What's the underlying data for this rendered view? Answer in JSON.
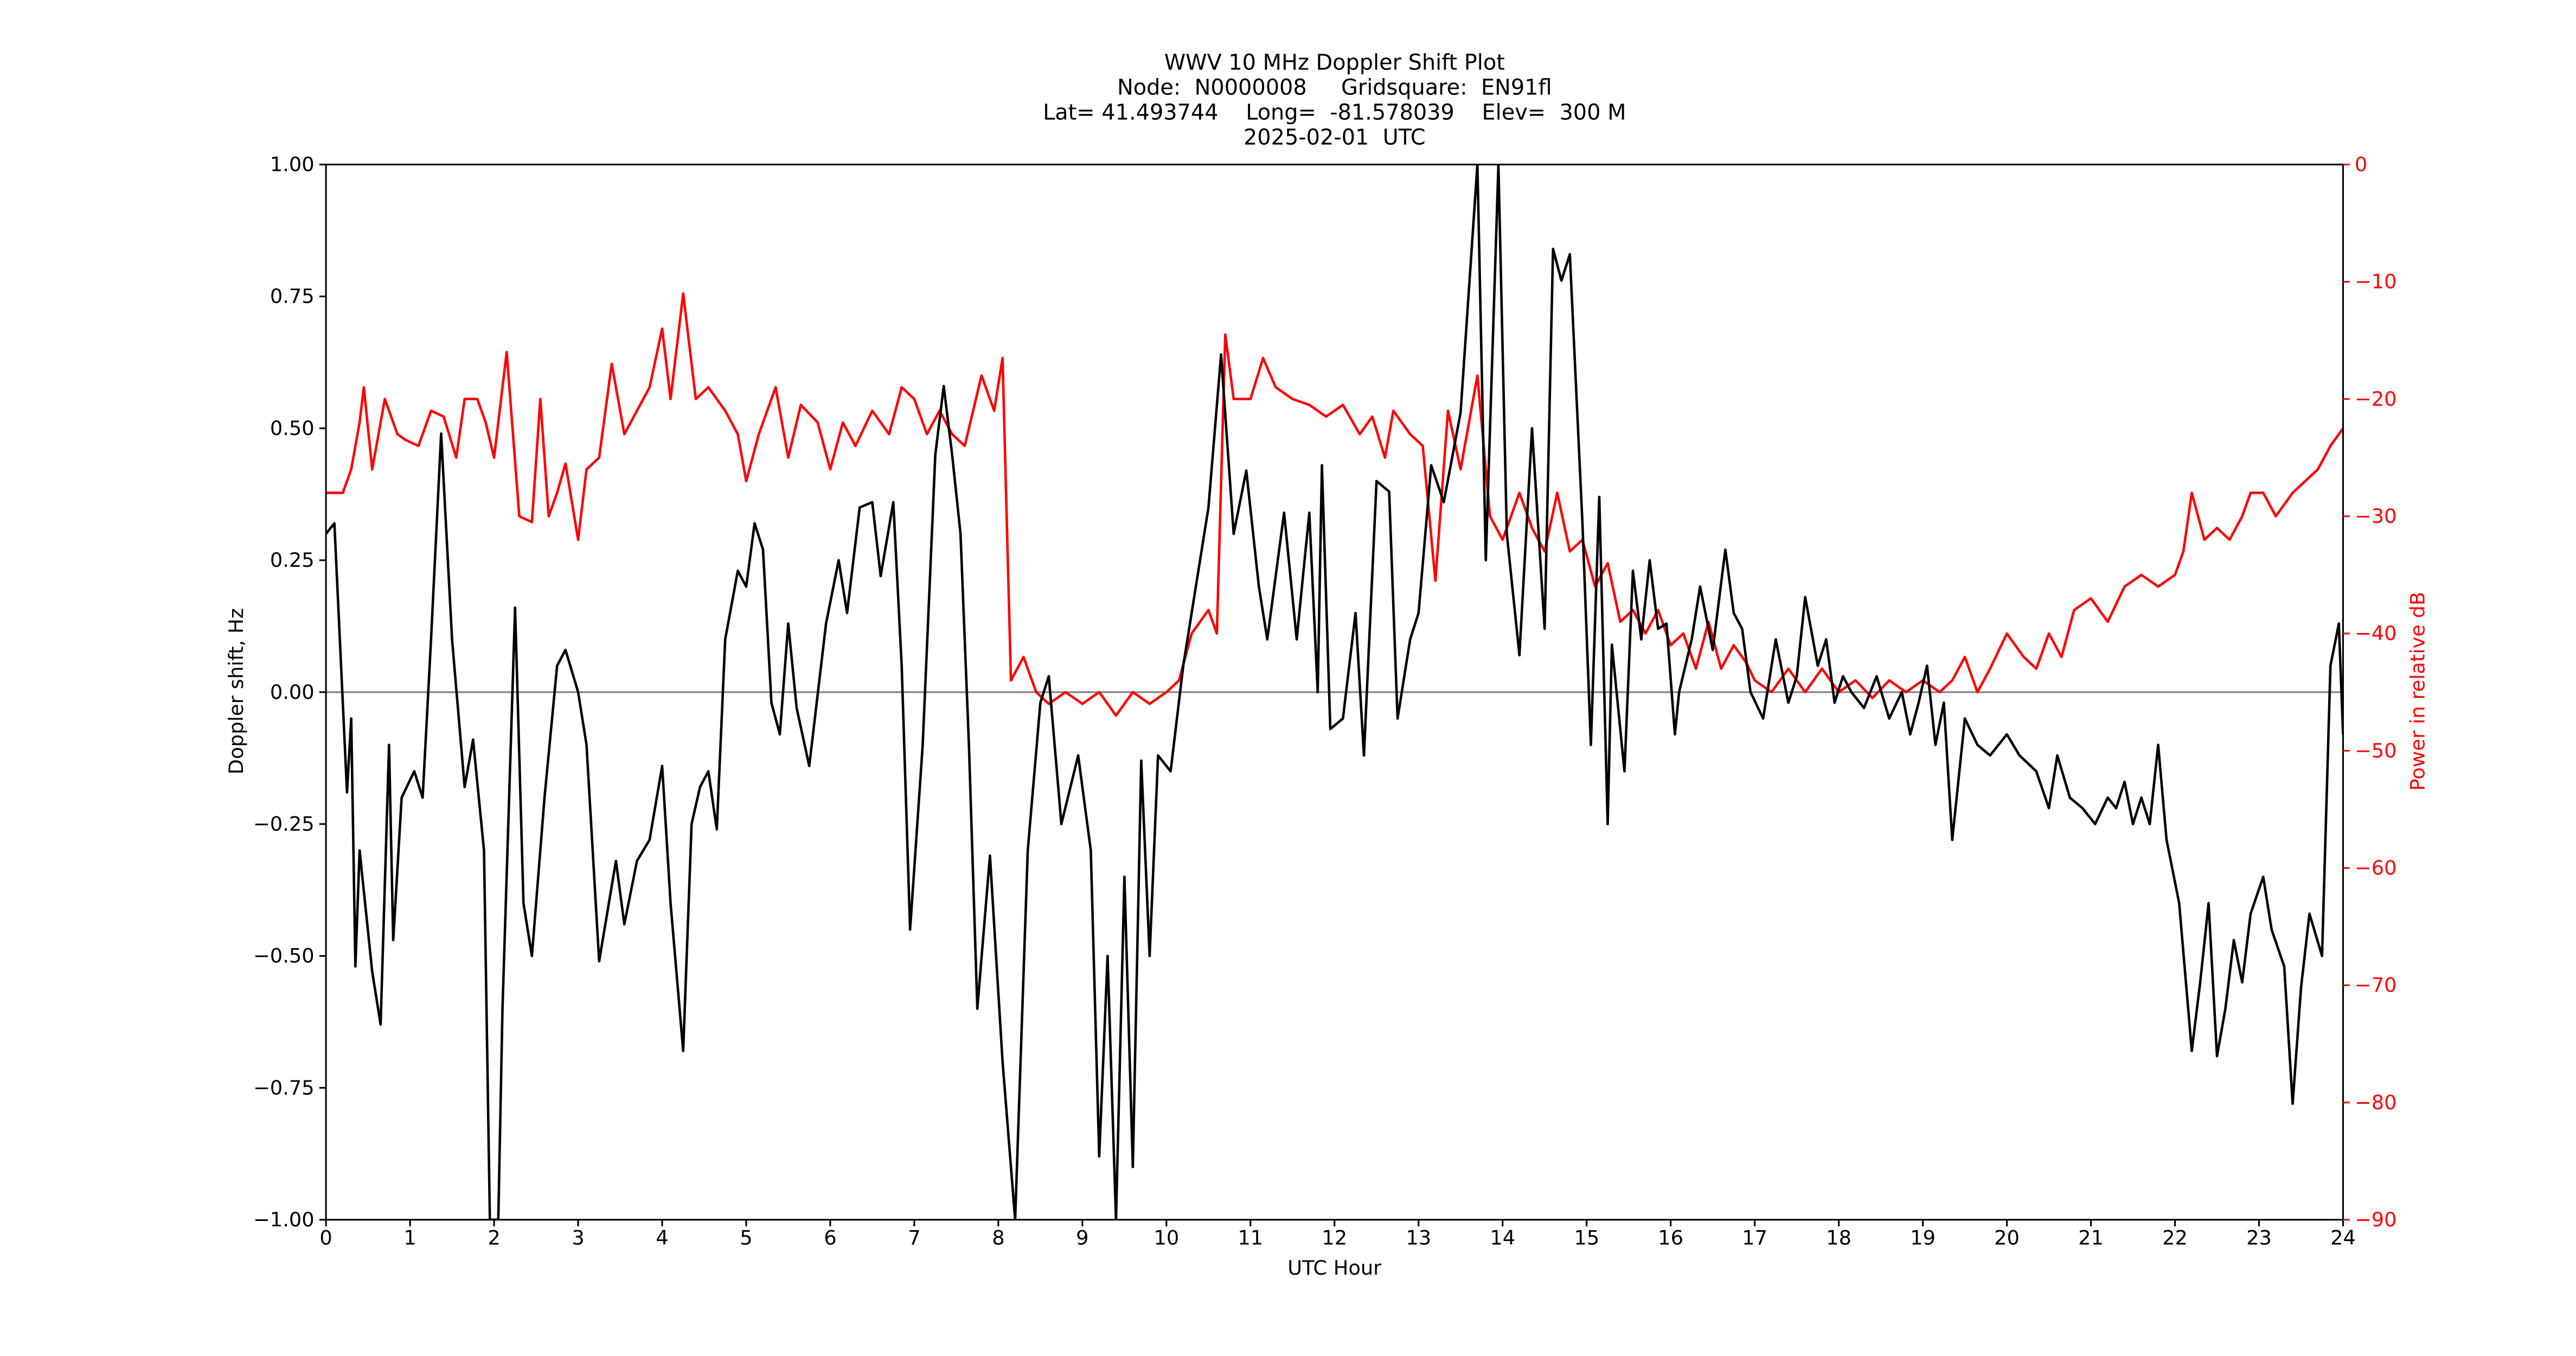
{
  "chart_data": {
    "type": "line",
    "title": [
      "WWV 10 MHz Doppler Shift Plot",
      "Node:  N0000008     Gridsquare:  EN91fl",
      "Lat= 41.493744    Long=  -81.578039    Elev=  300 M",
      "2025-02-01  UTC"
    ],
    "x_label": "UTC Hour",
    "y_label": "Doppler shift, Hz",
    "y2_label": "Power in relative dB",
    "xlim": [
      0,
      24
    ],
    "xticks": [
      0,
      1,
      2,
      3,
      4,
      5,
      6,
      7,
      8,
      9,
      10,
      11,
      12,
      13,
      14,
      15,
      16,
      17,
      18,
      19,
      20,
      21,
      22,
      23,
      24
    ],
    "ylim": [
      -1,
      1
    ],
    "yticks": [
      {
        "value": -1,
        "label": "−1.00"
      },
      {
        "value": -0.75,
        "label": "−0.75"
      },
      {
        "value": -0.5,
        "label": "−0.50"
      },
      {
        "value": -0.25,
        "label": "−0.25"
      },
      {
        "value": 0,
        "label": "0.00"
      },
      {
        "value": 0.25,
        "label": "0.25"
      },
      {
        "value": 0.5,
        "label": "0.50"
      },
      {
        "value": 0.75,
        "label": "0.75"
      },
      {
        "value": 1,
        "label": "1.00"
      }
    ],
    "y2lim": [
      -90,
      0
    ],
    "y2ticks": [
      {
        "value": -90,
        "label": "−90"
      },
      {
        "value": -80,
        "label": "−80"
      },
      {
        "value": -70,
        "label": "−70"
      },
      {
        "value": -60,
        "label": "−60"
      },
      {
        "value": -50,
        "label": "−50"
      },
      {
        "value": -40,
        "label": "−40"
      },
      {
        "value": -30,
        "label": "−30"
      },
      {
        "value": -20,
        "label": "−20"
      },
      {
        "value": -10,
        "label": "−10"
      },
      0
    ],
    "y2_color": "#ff0000",
    "hline": 0,
    "hline_color": "#808080",
    "series": [
      {
        "name": "Doppler shift",
        "color": "#000000",
        "x": [
          0,
          0.1,
          0.25,
          0.3,
          0.35,
          0.4,
          0.55,
          0.65,
          0.75,
          0.8,
          0.9,
          1.05,
          1.15,
          1.25,
          1.37,
          1.5,
          1.65,
          1.75,
          1.88,
          1.95,
          2.05,
          2.1,
          2.25,
          2.35,
          2.45,
          2.6,
          2.75,
          2.85,
          3.0,
          3.1,
          3.25,
          3.45,
          3.55,
          3.7,
          3.85,
          4.0,
          4.1,
          4.25,
          4.35,
          4.45,
          4.55,
          4.65,
          4.75,
          4.9,
          5.0,
          5.1,
          5.2,
          5.3,
          5.4,
          5.5,
          5.6,
          5.75,
          5.95,
          6.1,
          6.2,
          6.35,
          6.5,
          6.6,
          6.75,
          6.85,
          6.95,
          7.1,
          7.25,
          7.35,
          7.45,
          7.55,
          7.65,
          7.75,
          7.9,
          8.05,
          8.2,
          8.35,
          8.5,
          8.6,
          8.75,
          8.95,
          9.1,
          9.2,
          9.3,
          9.4,
          9.5,
          9.6,
          9.7,
          9.8,
          9.9,
          10.05,
          10.2,
          10.5,
          10.65,
          10.8,
          10.95,
          11.1,
          11.2,
          11.4,
          11.55,
          11.7,
          11.8,
          11.85,
          11.95,
          12.1,
          12.25,
          12.35,
          12.5,
          12.65,
          12.75,
          12.9,
          13.0,
          13.15,
          13.3,
          13.5,
          13.7,
          13.8,
          13.95,
          14.05,
          14.2,
          14.35,
          14.5,
          14.6,
          14.7,
          14.8,
          14.95,
          15.05,
          15.15,
          15.25,
          15.3,
          15.45,
          15.55,
          15.65,
          15.75,
          15.85,
          15.95,
          16.05,
          16.1,
          16.25,
          16.35,
          16.5,
          16.65,
          16.75,
          16.85,
          16.95,
          17.1,
          17.25,
          17.4,
          17.5,
          17.6,
          17.75,
          17.85,
          17.95,
          18.05,
          18.15,
          18.3,
          18.45,
          18.6,
          18.75,
          18.85,
          18.95,
          19.05,
          19.15,
          19.25,
          19.35,
          19.5,
          19.65,
          19.8,
          20.0,
          20.15,
          20.35,
          20.5,
          20.6,
          20.75,
          20.9,
          21.05,
          21.2,
          21.3,
          21.4,
          21.5,
          21.6,
          21.7,
          21.8,
          21.9,
          22.05,
          22.2,
          22.3,
          22.4,
          22.5,
          22.6,
          22.7,
          22.8,
          22.9,
          23.05,
          23.15,
          23.3,
          23.4,
          23.5,
          23.6,
          23.75,
          23.85,
          23.95,
          24.0
        ],
        "values": [
          0.3,
          0.32,
          -0.19,
          -0.05,
          -0.52,
          -0.3,
          -0.53,
          -0.63,
          -0.1,
          -0.47,
          -0.2,
          -0.15,
          -0.2,
          0.1,
          0.49,
          0.1,
          -0.18,
          -0.09,
          -0.3,
          -1,
          -1,
          -0.6,
          0.16,
          -0.4,
          -0.5,
          -0.2,
          0.05,
          0.08,
          0,
          -0.1,
          -0.51,
          -0.32,
          -0.44,
          -0.32,
          -0.28,
          -0.14,
          -0.4,
          -0.68,
          -0.25,
          -0.18,
          -0.15,
          -0.26,
          0.1,
          0.23,
          0.2,
          0.32,
          0.27,
          -0.02,
          -0.08,
          0.13,
          -0.03,
          -0.14,
          0.13,
          0.25,
          0.15,
          0.35,
          0.36,
          0.22,
          0.36,
          0.05,
          -0.45,
          -0.1,
          0.45,
          0.58,
          0.45,
          0.3,
          -0.1,
          -0.6,
          -0.31,
          -0.7,
          -1,
          -0.3,
          -0.02,
          0.03,
          -0.25,
          -0.12,
          -0.3,
          -0.88,
          -0.5,
          -1,
          -0.35,
          -0.9,
          -0.13,
          -0.5,
          -0.12,
          -0.15,
          0.05,
          0.35,
          0.64,
          0.3,
          0.42,
          0.2,
          0.1,
          0.34,
          0.1,
          0.34,
          0,
          0.43,
          -0.07,
          -0.05,
          0.15,
          -0.12,
          0.4,
          0.38,
          -0.05,
          0.1,
          0.15,
          0.43,
          0.36,
          0.53,
          1,
          0.25,
          1,
          0.3,
          0.07,
          0.5,
          0.12,
          0.84,
          0.78,
          0.83,
          0.32,
          -0.1,
          0.37,
          -0.25,
          0.09,
          -0.15,
          0.23,
          0.1,
          0.25,
          0.12,
          0.13,
          -0.08,
          0,
          0.1,
          0.2,
          0.08,
          0.27,
          0.15,
          0.12,
          0,
          -0.05,
          0.1,
          -0.02,
          0.03,
          0.18,
          0.05,
          0.1,
          -0.02,
          0.03,
          0,
          -0.03,
          0.03,
          -0.05,
          0,
          -0.08,
          -0.02,
          0.05,
          -0.1,
          -0.02,
          -0.28,
          -0.05,
          -0.1,
          -0.12,
          -0.08,
          -0.12,
          -0.15,
          -0.22,
          -0.12,
          -0.2,
          -0.22,
          -0.25,
          -0.2,
          -0.22,
          -0.17,
          -0.25,
          -0.2,
          -0.25,
          -0.1,
          -0.28,
          -0.4,
          -0.68,
          -0.55,
          -0.4,
          -0.69,
          -0.6,
          -0.47,
          -0.55,
          -0.42,
          -0.35,
          -0.45,
          -0.52,
          -0.78,
          -0.56,
          -0.42,
          -0.5,
          0.05,
          0.13,
          -0.08
        ]
      },
      {
        "name": "Power",
        "color": "#ff0000",
        "axis": "y2",
        "x": [
          0,
          0.2,
          0.3,
          0.4,
          0.45,
          0.55,
          0.7,
          0.85,
          0.95,
          1.1,
          1.25,
          1.4,
          1.55,
          1.65,
          1.8,
          1.9,
          2.0,
          2.15,
          2.3,
          2.45,
          2.55,
          2.65,
          2.75,
          2.85,
          3.0,
          3.1,
          3.25,
          3.4,
          3.55,
          3.7,
          3.85,
          4.0,
          4.1,
          4.25,
          4.4,
          4.55,
          4.75,
          4.9,
          5.0,
          5.15,
          5.35,
          5.5,
          5.65,
          5.85,
          6.0,
          6.15,
          6.3,
          6.5,
          6.7,
          6.85,
          7.0,
          7.15,
          7.3,
          7.45,
          7.6,
          7.8,
          7.95,
          8.05,
          8.15,
          8.3,
          8.45,
          8.6,
          8.8,
          9.0,
          9.2,
          9.4,
          9.6,
          9.8,
          10.0,
          10.15,
          10.3,
          10.5,
          10.6,
          10.7,
          10.8,
          11.0,
          11.15,
          11.3,
          11.5,
          11.7,
          11.9,
          12.1,
          12.3,
          12.45,
          12.6,
          12.7,
          12.9,
          13.05,
          13.2,
          13.35,
          13.5,
          13.7,
          13.85,
          14.0,
          14.2,
          14.35,
          14.5,
          14.65,
          14.8,
          14.95,
          15.1,
          15.25,
          15.4,
          15.55,
          15.7,
          15.85,
          16.0,
          16.15,
          16.3,
          16.45,
          16.6,
          16.75,
          16.9,
          17.0,
          17.2,
          17.4,
          17.6,
          17.8,
          18.0,
          18.2,
          18.4,
          18.6,
          18.8,
          19.0,
          19.2,
          19.35,
          19.5,
          19.65,
          19.8,
          20.0,
          20.2,
          20.35,
          20.5,
          20.65,
          20.8,
          21.0,
          21.2,
          21.4,
          21.6,
          21.8,
          22.0,
          22.1,
          22.2,
          22.35,
          22.5,
          22.65,
          22.8,
          22.9,
          23.05,
          23.2,
          23.4,
          23.55,
          23.7,
          23.85,
          24.0
        ],
        "values": [
          -28,
          -28,
          -26,
          -22,
          -19,
          -26,
          -20,
          -23,
          -23.5,
          -24,
          -21,
          -21.5,
          -25,
          -20,
          -20,
          -22,
          -25,
          -16,
          -30,
          -30.5,
          -20,
          -30,
          -28,
          -25.5,
          -32,
          -26,
          -25,
          -17,
          -23,
          -21,
          -19,
          -14,
          -20,
          -11,
          -20,
          -19,
          -21,
          -23,
          -27,
          -23,
          -19,
          -25,
          -20.5,
          -22,
          -26,
          -22,
          -24,
          -21,
          -23,
          -19,
          -20,
          -23,
          -21,
          -23,
          -24,
          -18,
          -21,
          -16.5,
          -44,
          -42,
          -45,
          -46,
          -45,
          -46,
          -45,
          -47,
          -45,
          -46,
          -45,
          -44,
          -40,
          -38,
          -40,
          -14.5,
          -20,
          -20,
          -16.5,
          -19,
          -20,
          -20.5,
          -21.5,
          -20.5,
          -23,
          -21.5,
          -25,
          -21,
          -23,
          -24,
          -35.5,
          -21,
          -26,
          -18,
          -30,
          -32,
          -28,
          -31,
          -33,
          -28,
          -33,
          -32,
          -36,
          -34,
          -39,
          -38,
          -40,
          -38,
          -41,
          -40,
          -43,
          -39,
          -43,
          -41,
          -42.5,
          -44,
          -45,
          -43,
          -45,
          -43,
          -45,
          -44,
          -45.5,
          -44,
          -45,
          -44,
          -45,
          -44,
          -42,
          -45,
          -43,
          -40,
          -42,
          -43,
          -40,
          -42,
          -38,
          -37,
          -39,
          -36,
          -35,
          -36,
          -35,
          -33,
          -28,
          -32,
          -31,
          -32,
          -30,
          -28,
          -28,
          -30,
          -28,
          -27,
          -26,
          -24,
          -22.5
        ]
      }
    ]
  }
}
